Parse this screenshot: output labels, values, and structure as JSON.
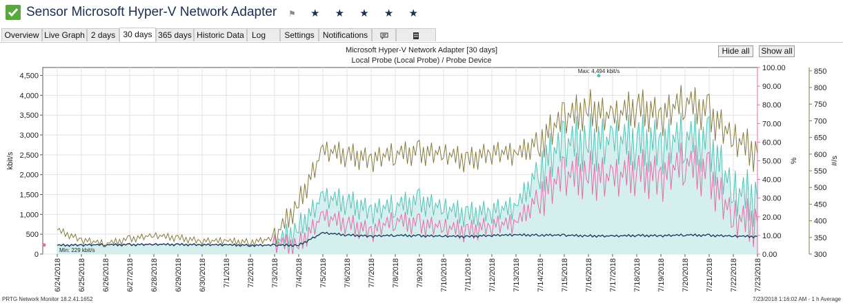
{
  "header": {
    "title": "Sensor Microsoft Hyper-V Network Adapter",
    "flag_icon": "flag-icon",
    "stars": "★ ★ ★ ★ ★",
    "status_color": "#57a83e"
  },
  "tabs": [
    {
      "label": "Overview"
    },
    {
      "label": "Live Graph"
    },
    {
      "label": "2 days"
    },
    {
      "label": "30 days"
    },
    {
      "label": "365 days"
    },
    {
      "label": "Historic Data"
    },
    {
      "label": "Log"
    },
    {
      "label": "Settings"
    },
    {
      "label": "Notifications"
    },
    {
      "label": "comment-icon"
    },
    {
      "label": "history-icon"
    }
  ],
  "buttons": {
    "hide_all": "Hide all",
    "show_all": "Show all"
  },
  "chart_data": {
    "type": "area",
    "title": "Microsoft Hyper-V Network Adapter [30 days]",
    "subtitle": "Local Probe (Local Probe) / Probe Device",
    "x_ticks": [
      "6/24/2018",
      "6/25/2018",
      "6/26/2018",
      "6/27/2018",
      "6/28/2018",
      "6/29/2018",
      "6/30/2018",
      "7/1/2018",
      "7/2/2018",
      "7/3/2018",
      "7/4/2018",
      "7/5/2018",
      "7/6/2018",
      "7/7/2018",
      "7/8/2018",
      "7/9/2018",
      "7/10/2018",
      "7/11/2018",
      "7/12/2018",
      "7/13/2018",
      "7/14/2018",
      "7/15/2018",
      "7/16/2018",
      "7/17/2018",
      "7/18/2018",
      "7/19/2018",
      "7/20/2018",
      "7/21/2018",
      "7/22/2018",
      "7/23/2018"
    ],
    "axes": {
      "left": {
        "label": "kbit/s",
        "range": [
          0,
          4700
        ],
        "ticks": [
          "0",
          "500",
          "1,000",
          "1,500",
          "2,000",
          "2,500",
          "3,000",
          "3,500",
          "4,000",
          "4,500"
        ]
      },
      "right1": {
        "label": "%",
        "range": [
          0,
          100
        ],
        "ticks": [
          "0.00",
          "10.00",
          "20.00",
          "30.00",
          "40.00",
          "50.00",
          "60.00",
          "70.00",
          "80.00",
          "90.00",
          "100.00"
        ]
      },
      "right2": {
        "label": "#/s",
        "range": [
          300,
          860
        ],
        "ticks": [
          "300",
          "350",
          "400",
          "450",
          "500",
          "550",
          "600",
          "650",
          "700",
          "750",
          "800",
          "850"
        ]
      }
    },
    "annotations": {
      "max": "Max: 4,494 kbit/s",
      "min": "Min: 229 kbit/s"
    },
    "colors": {
      "traffic_total": "#4fc4b8",
      "traffic_in": "#e96aa6",
      "traffic_out": "#1c3f63",
      "packets": "#857a3c",
      "area_fill": "#d4efee"
    },
    "series": [
      {
        "values": [
          225,
          232,
          236,
          240,
          247,
          244,
          237,
          232,
          225,
          222,
          660,
          1385,
          1310,
          1075,
          1190,
          1320,
          1120,
          980,
          1090,
          1125,
          2210,
          2680,
          2840,
          2720,
          2840,
          2710,
          2880,
          2750,
          1470,
          1390
        ]
      },
      {
        "values": [
          225,
          232,
          236,
          240,
          247,
          244,
          237,
          232,
          225,
          222,
          240,
          910,
          760,
          560,
          830,
          740,
          650,
          560,
          720,
          730,
          1500,
          1880,
          2020,
          1800,
          2090,
          1890,
          2260,
          1960,
          820,
          780
        ]
      },
      {
        "values": [
          220,
          228,
          232,
          236,
          242,
          240,
          234,
          230,
          222,
          220,
          224,
          530,
          480,
          450,
          470,
          460,
          450,
          440,
          470,
          480,
          480,
          470,
          460,
          450,
          470,
          460,
          480,
          470,
          450,
          440
        ]
      },
      {
        "values": [
          372,
          342,
          330,
          345,
          355,
          348,
          339,
          338,
          336,
          345,
          455,
          605,
          598,
          582,
          598,
          604,
          597,
          580,
          606,
          593,
          640,
          700,
          738,
          700,
          742,
          710,
          755,
          720,
          640,
          600
        ]
      }
    ]
  },
  "footer": {
    "left": "PRTG Network Monitor 18.2.41.1652",
    "right": "7/23/2018 1:16:02 AM - 1 h Average"
  }
}
